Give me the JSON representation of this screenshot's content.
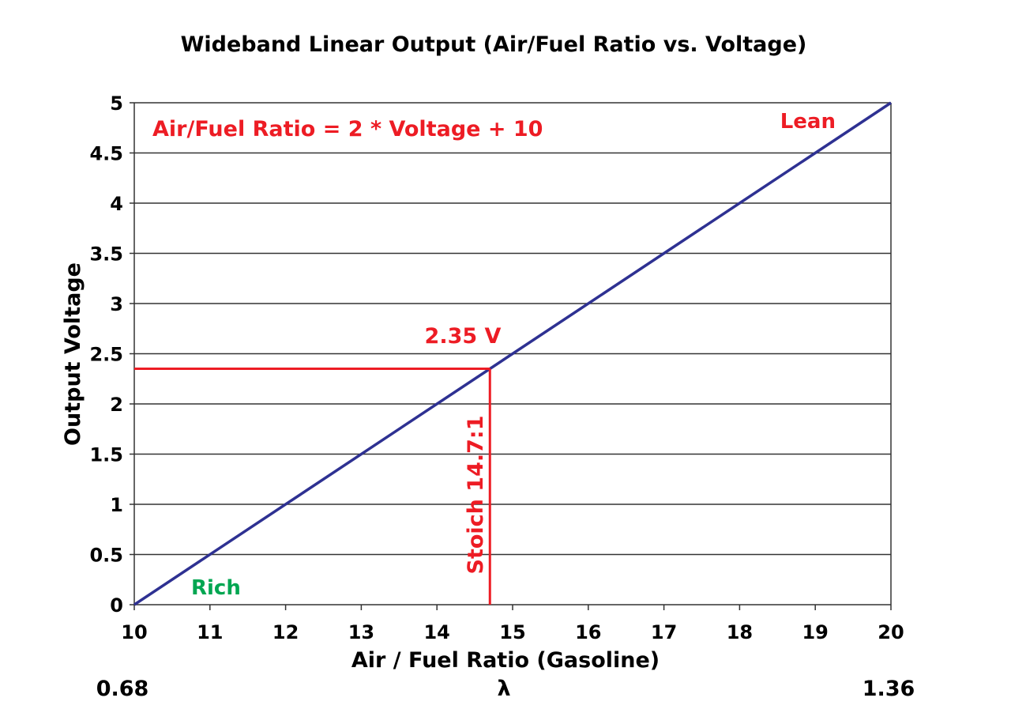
{
  "chart_data": {
    "type": "line",
    "title": "Wideband Linear Output (Air/Fuel Ratio vs. Voltage)",
    "xlabel": "Air / Fuel Ratio (Gasoline)",
    "ylabel": "Output Voltage",
    "xlim": [
      10,
      20
    ],
    "ylim": [
      0,
      5
    ],
    "x_ticks": [
      "10",
      "11",
      "12",
      "13",
      "14",
      "15",
      "16",
      "17",
      "18",
      "19",
      "20"
    ],
    "y_ticks": [
      "0",
      "0.5",
      "1",
      "1.5",
      "2",
      "2.5",
      "3",
      "3.5",
      "4",
      "4.5",
      "5"
    ],
    "grid": "horizontal",
    "series": [
      {
        "x": [
          10,
          20
        ],
        "y": [
          0,
          5
        ],
        "color": "#2e3192"
      }
    ],
    "annotations": {
      "formula": "Air/Fuel Ratio = 2 * Voltage + 10",
      "lean": "Lean",
      "rich": "Rich",
      "voltage_marker": "2.35 V",
      "stoich_label": "Stoich 14.7:1"
    },
    "marker_point": {
      "x": 14.7,
      "y": 2.35
    },
    "lambda": {
      "symbol": "λ",
      "min": "0.68",
      "max": "1.36"
    },
    "colors": {
      "line": "#2e3192",
      "annotation": "#ed1c24",
      "rich": "#00a651",
      "grid": "#333333",
      "text": "#000000"
    }
  }
}
